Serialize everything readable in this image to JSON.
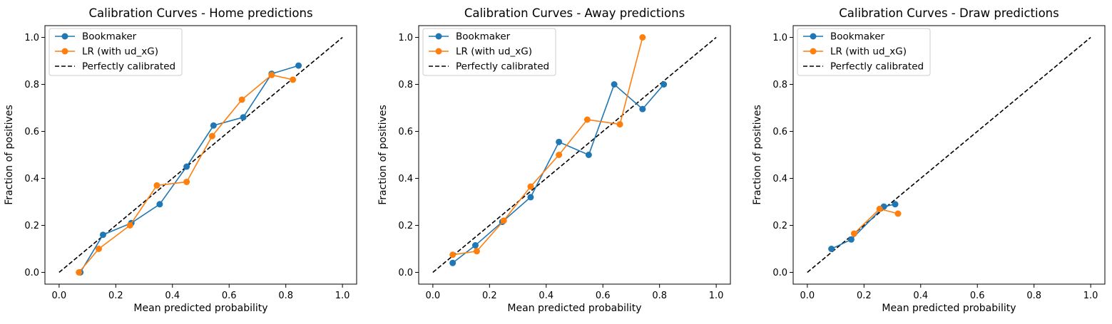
{
  "chart_data": [
    {
      "type": "line",
      "title": "Calibration Curves - Home predictions",
      "xlabel": "Mean predicted probability",
      "ylabel": "Fraction of positives",
      "xlim": [
        -0.05,
        1.05
      ],
      "ylim": [
        -0.05,
        1.05
      ],
      "xticks": [
        "0.0",
        "0.2",
        "0.4",
        "0.6",
        "0.8",
        "1.0"
      ],
      "yticks": [
        "0.0",
        "0.2",
        "0.4",
        "0.6",
        "0.8",
        "1.0"
      ],
      "grid": false,
      "legend_position": "top-left",
      "series": [
        {
          "name": "Bookmaker",
          "color": "#1f77b4",
          "marker": "circle",
          "x": [
            0.075,
            0.155,
            0.255,
            0.355,
            0.45,
            0.545,
            0.65,
            0.75,
            0.845
          ],
          "y": [
            0.0,
            0.16,
            0.21,
            0.29,
            0.45,
            0.625,
            0.66,
            0.845,
            0.88
          ]
        },
        {
          "name": "LR (with ud_xG)",
          "color": "#ff7f0e",
          "marker": "circle",
          "x": [
            0.07,
            0.14,
            0.25,
            0.345,
            0.45,
            0.54,
            0.645,
            0.75,
            0.825
          ],
          "y": [
            0.0,
            0.1,
            0.2,
            0.37,
            0.385,
            0.58,
            0.735,
            0.84,
            0.82
          ]
        },
        {
          "name": "Perfectly calibrated",
          "color": "#000000",
          "style": "dashed",
          "x": [
            0.0,
            1.0
          ],
          "y": [
            0.0,
            1.0
          ]
        }
      ]
    },
    {
      "type": "line",
      "title": "Calibration Curves - Away predictions",
      "xlabel": "Mean predicted probability",
      "ylabel": "Fraction of positives",
      "xlim": [
        -0.05,
        1.05
      ],
      "ylim": [
        -0.05,
        1.05
      ],
      "xticks": [
        "0.0",
        "0.2",
        "0.4",
        "0.6",
        "0.8",
        "1.0"
      ],
      "yticks": [
        "0.0",
        "0.2",
        "0.4",
        "0.6",
        "0.8",
        "1.0"
      ],
      "grid": false,
      "legend_position": "top-left",
      "series": [
        {
          "name": "Bookmaker",
          "color": "#1f77b4",
          "marker": "circle",
          "x": [
            0.07,
            0.15,
            0.245,
            0.345,
            0.445,
            0.55,
            0.64,
            0.74,
            0.815
          ],
          "y": [
            0.04,
            0.115,
            0.215,
            0.32,
            0.555,
            0.5,
            0.8,
            0.695,
            0.8
          ]
        },
        {
          "name": "LR (with ud_xG)",
          "color": "#ff7f0e",
          "marker": "circle",
          "x": [
            0.07,
            0.155,
            0.25,
            0.345,
            0.445,
            0.545,
            0.66,
            0.74
          ],
          "y": [
            0.075,
            0.09,
            0.22,
            0.365,
            0.5,
            0.65,
            0.63,
            1.0
          ]
        },
        {
          "name": "Perfectly calibrated",
          "color": "#000000",
          "style": "dashed",
          "x": [
            0.0,
            1.0
          ],
          "y": [
            0.0,
            1.0
          ]
        }
      ]
    },
    {
      "type": "line",
      "title": "Calibration Curves - Draw predictions",
      "xlabel": "Mean predicted probability",
      "ylabel": "Fraction of positives",
      "xlim": [
        -0.05,
        1.05
      ],
      "ylim": [
        -0.05,
        1.05
      ],
      "xticks": [
        "0.0",
        "0.2",
        "0.4",
        "0.6",
        "0.8",
        "1.0"
      ],
      "yticks": [
        "0.0",
        "0.2",
        "0.4",
        "0.6",
        "0.8",
        "1.0"
      ],
      "grid": false,
      "legend_position": "top-left",
      "series": [
        {
          "name": "Bookmaker",
          "color": "#1f77b4",
          "marker": "circle",
          "x": [
            0.085,
            0.155,
            0.27,
            0.31
          ],
          "y": [
            0.1,
            0.14,
            0.28,
            0.29
          ]
        },
        {
          "name": "LR (with ud_xG)",
          "color": "#ff7f0e",
          "marker": "circle",
          "x": [
            0.165,
            0.255,
            0.32
          ],
          "y": [
            0.165,
            0.27,
            0.25
          ]
        },
        {
          "name": "Perfectly calibrated",
          "color": "#000000",
          "style": "dashed",
          "x": [
            0.0,
            1.0
          ],
          "y": [
            0.0,
            1.0
          ]
        }
      ]
    }
  ]
}
